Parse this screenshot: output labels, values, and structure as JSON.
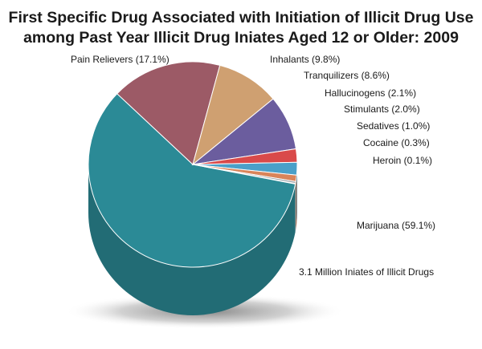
{
  "chart_data": {
    "type": "pie",
    "title_lines": [
      "First Specific Drug Associated with Initiation of Illicit Drug Use",
      "among Past Year Illicit Drug Iniates Aged 12 or Older: 2009"
    ],
    "slices": [
      {
        "name": "Marijuana",
        "value": 59.1,
        "label": "Marijuana (59.1%)",
        "color": "#2b8a96"
      },
      {
        "name": "Pain Relievers",
        "value": 17.1,
        "label": "Pain Relievers (17.1%)",
        "color": "#9c5a66"
      },
      {
        "name": "Inhalants",
        "value": 9.8,
        "label": "Inhalants (9.8%)",
        "color": "#cfa071"
      },
      {
        "name": "Tranquilizers",
        "value": 8.6,
        "label": "Tranquilizers (8.6%)",
        "color": "#6b5d9e"
      },
      {
        "name": "Hallucinogens",
        "value": 2.1,
        "label": "Hallucinogens (2.1%)",
        "color": "#d94a4a"
      },
      {
        "name": "Stimulants",
        "value": 2.0,
        "label": "Stimulants (2.0%)",
        "color": "#4aa0c9"
      },
      {
        "name": "Sedatives",
        "value": 1.0,
        "label": "Sedatives (1.0%)",
        "color": "#d9845a"
      },
      {
        "name": "Cocaine",
        "value": 0.3,
        "label": "Cocaine (0.3%)",
        "color": "#9aa0a6"
      },
      {
        "name": "Heroin",
        "value": 0.1,
        "label": "Heroin (0.1%)",
        "color": "#b5980f"
      }
    ],
    "exploded_slice": "Heroin",
    "note": "3.1 Million Iniates of Illicit Drugs",
    "legend": "none"
  }
}
